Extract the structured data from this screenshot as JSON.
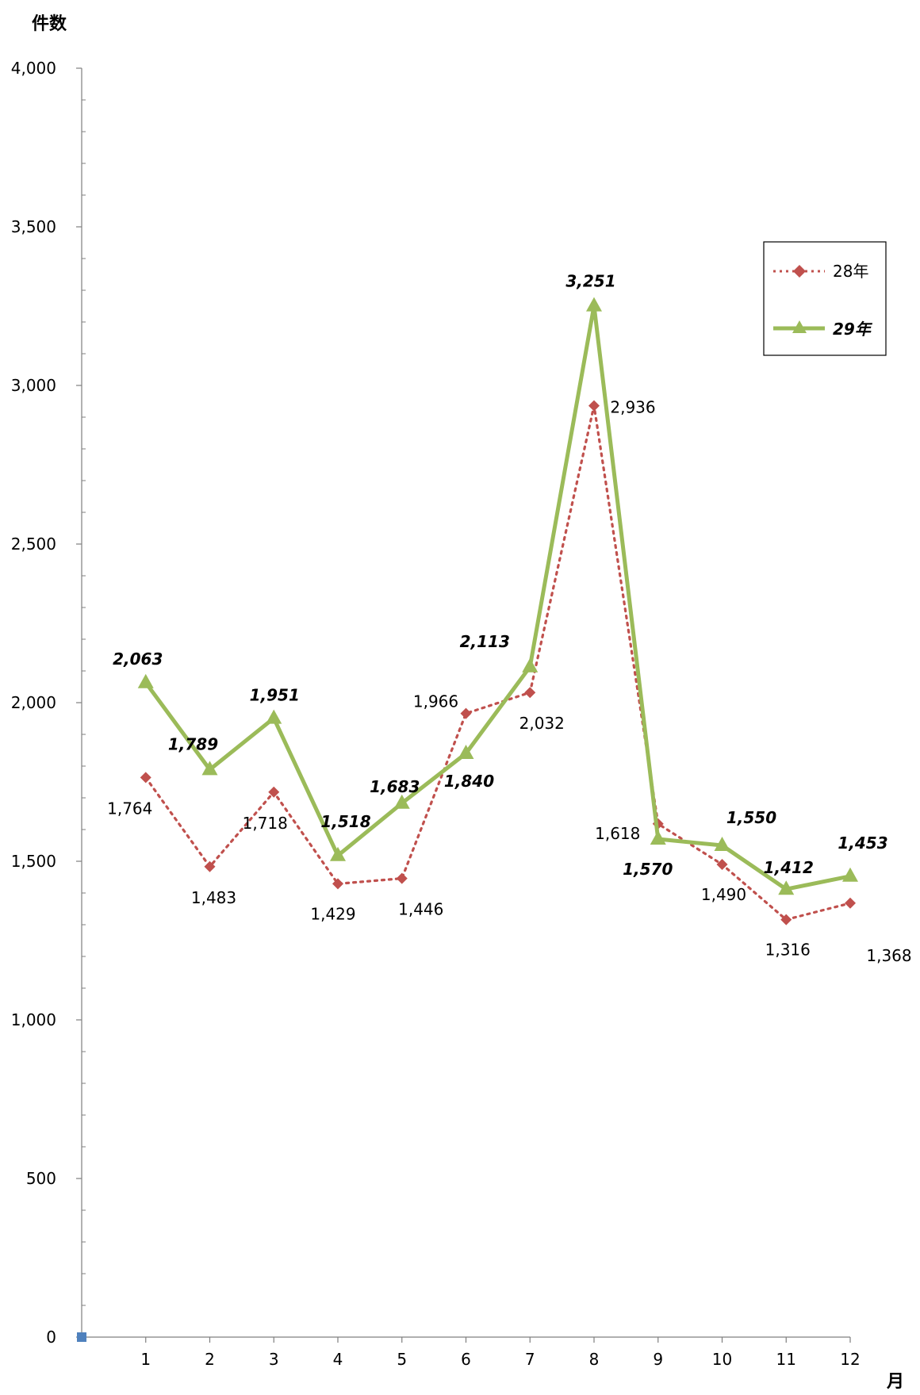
{
  "chart_data": {
    "type": "line",
    "ylabel": "件数",
    "xlabel": "月",
    "categories": [
      "1",
      "2",
      "3",
      "4",
      "5",
      "6",
      "7",
      "8",
      "9",
      "10",
      "11",
      "12"
    ],
    "ylim": [
      0,
      4000
    ],
    "y_ticks": [
      0,
      500,
      1000,
      1500,
      2000,
      2500,
      3000,
      3500,
      4000
    ],
    "y_tick_labels": [
      "0",
      "500",
      "1,000",
      "1,500",
      "2,000",
      "2,500",
      "3,000",
      "3,500",
      "4,000"
    ],
    "series": [
      {
        "name": "28年",
        "values": [
          1764,
          1483,
          1718,
          1429,
          1446,
          1966,
          2032,
          2936,
          1618,
          1490,
          1316,
          1368
        ],
        "labels": [
          "1,764",
          "1,483",
          "1,718",
          "1,429",
          "1,446",
          "1,966",
          "2,032",
          "2,936",
          "1,618",
          "1,490",
          "1,316",
          "1,368"
        ],
        "color": "#c0504d",
        "line_style": "dotted",
        "marker": "diamond"
      },
      {
        "name": "29年",
        "values": [
          2063,
          1789,
          1951,
          1518,
          1683,
          1840,
          2113,
          3251,
          1570,
          1550,
          1412,
          1453
        ],
        "labels": [
          "2,063",
          "1,789",
          "1,951",
          "1,518",
          "1,683",
          "1,840",
          "2,113",
          "3,251",
          "1,570",
          "1,550",
          "1,412",
          "1,453"
        ],
        "color": "#9bbb59",
        "line_style": "solid",
        "marker": "triangle"
      }
    ],
    "legend_position": "right",
    "grid": false
  }
}
